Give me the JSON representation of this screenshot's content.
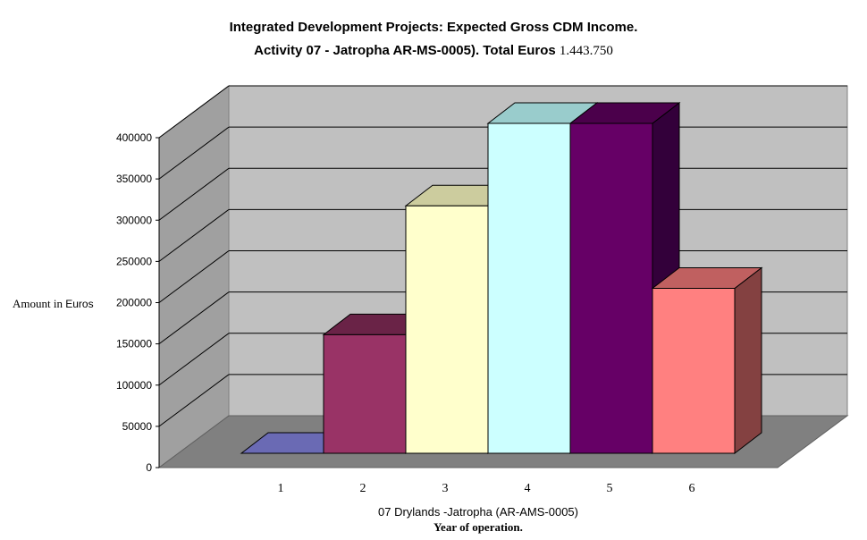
{
  "title": {
    "line1": "Integrated Development Projects: Expected Gross CDM Income.",
    "line2_prefix": "Activity 07 - Jatropha AR-MS-0005).  Total Euros ",
    "line2_amount": "1.443.750"
  },
  "axes": {
    "ylabel_prefix": "Amount in ",
    "ylabel_bold": "Euros",
    "xlabel_line1": "07 Drylands -Jatropha (AR-AMS-0005)",
    "xlabel_line2": "Year of operation."
  },
  "chart_data": {
    "type": "bar",
    "title": "Integrated Development Projects: Expected Gross CDM Income. Activity 07 - Jatropha AR-MS-0005).  Total Euros 1.443.750",
    "categories": [
      "1",
      "2",
      "3",
      "4",
      "5",
      "6"
    ],
    "values": [
      0,
      143750,
      300000,
      400000,
      400000,
      200000
    ],
    "ylabel": "Amount in Euros",
    "xlabel": "07 Drylands -Jatropha (AR-AMS-0005) Year of operation.",
    "ylim": [
      0,
      400000
    ],
    "yticks": [
      "0",
      "50000",
      "100000",
      "150000",
      "200000",
      "250000",
      "300000",
      "350000",
      "400000"
    ],
    "grid": true,
    "colors": {
      "front": [
        "#7777CC",
        "#993366",
        "#FFFFCC",
        "#CCFFFF",
        "#660066",
        "#FF8080"
      ],
      "top": [
        "#6A6AB4",
        "#6A2347",
        "#CCCC9E",
        "#99CCCC",
        "#4B004B",
        "#C06060"
      ],
      "side": [
        "#5555A0",
        "#5A1E3C",
        "#B4B48C",
        "#8CB4B4",
        "#33003A",
        "#844141"
      ]
    }
  }
}
